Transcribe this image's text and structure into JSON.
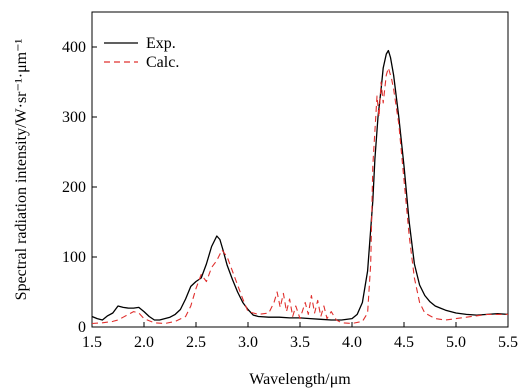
{
  "chart_data": {
    "type": "line",
    "title": "",
    "xlabel": "Wavelength/μm",
    "ylabel": "Spectral radiation intensity/W·sr⁻¹·μm⁻¹",
    "xlim": [
      1.5,
      5.5
    ],
    "ylim": [
      0,
      450
    ],
    "x_ticks": [
      1.5,
      2.0,
      2.5,
      3.0,
      3.5,
      4.0,
      4.5,
      5.0,
      5.5
    ],
    "x_tick_labels": [
      "1.5",
      "2.0",
      "2.5",
      "3.0",
      "3.5",
      "4.0",
      "4.5",
      "5.0",
      "5.5"
    ],
    "y_ticks": [
      0,
      100,
      200,
      300,
      400
    ],
    "y_tick_labels": [
      "0",
      "100",
      "200",
      "300",
      "400"
    ],
    "grid": false,
    "legend_position": "top-left",
    "series": [
      {
        "name": "Exp.",
        "color": "#000000",
        "style": "solid",
        "x": [
          1.5,
          1.55,
          1.6,
          1.65,
          1.7,
          1.75,
          1.8,
          1.85,
          1.9,
          1.95,
          2.0,
          2.05,
          2.1,
          2.15,
          2.2,
          2.25,
          2.3,
          2.35,
          2.4,
          2.45,
          2.5,
          2.55,
          2.6,
          2.65,
          2.7,
          2.73,
          2.76,
          2.8,
          2.85,
          2.9,
          2.95,
          3.0,
          3.05,
          3.1,
          3.2,
          3.3,
          3.4,
          3.5,
          3.6,
          3.7,
          3.8,
          3.9,
          4.0,
          4.05,
          4.1,
          4.15,
          4.2,
          4.22,
          4.25,
          4.28,
          4.3,
          4.33,
          4.35,
          4.37,
          4.4,
          4.45,
          4.5,
          4.55,
          4.6,
          4.65,
          4.7,
          4.75,
          4.8,
          4.85,
          4.9,
          5.0,
          5.1,
          5.2,
          5.3,
          5.4,
          5.5
        ],
        "y": [
          15,
          12,
          10,
          16,
          20,
          30,
          28,
          27,
          27,
          28,
          22,
          15,
          10,
          10,
          12,
          14,
          18,
          25,
          40,
          58,
          65,
          70,
          90,
          115,
          130,
          125,
          110,
          88,
          68,
          50,
          35,
          25,
          17,
          15,
          14,
          14,
          13,
          13,
          12,
          11,
          10,
          10,
          12,
          18,
          35,
          80,
          180,
          240,
          300,
          340,
          370,
          390,
          395,
          385,
          360,
          300,
          230,
          150,
          90,
          60,
          45,
          36,
          30,
          27,
          24,
          20,
          18,
          17,
          18,
          19,
          18
        ]
      },
      {
        "name": "Calc.",
        "color": "#e0302e",
        "style": "dashed",
        "x": [
          1.5,
          1.6,
          1.7,
          1.75,
          1.8,
          1.85,
          1.9,
          1.95,
          2.0,
          2.1,
          2.2,
          2.3,
          2.4,
          2.45,
          2.5,
          2.55,
          2.6,
          2.65,
          2.7,
          2.75,
          2.8,
          2.85,
          2.9,
          2.95,
          3.0,
          3.1,
          3.2,
          3.25,
          3.28,
          3.31,
          3.34,
          3.37,
          3.4,
          3.43,
          3.46,
          3.5,
          3.55,
          3.58,
          3.61,
          3.64,
          3.67,
          3.7,
          3.73,
          3.76,
          3.8,
          3.85,
          3.9,
          4.0,
          4.1,
          4.15,
          4.18,
          4.2,
          4.22,
          4.24,
          4.26,
          4.28,
          4.3,
          4.33,
          4.35,
          4.38,
          4.4,
          4.45,
          4.5,
          4.55,
          4.6,
          4.65,
          4.7,
          4.8,
          4.9,
          5.0,
          5.1,
          5.2,
          5.3,
          5.4,
          5.5
        ],
        "y": [
          5,
          6,
          8,
          10,
          14,
          18,
          22,
          20,
          12,
          6,
          5,
          8,
          15,
          30,
          55,
          75,
          65,
          85,
          95,
          110,
          100,
          80,
          60,
          40,
          22,
          18,
          20,
          35,
          50,
          28,
          48,
          22,
          40,
          15,
          30,
          12,
          35,
          18,
          45,
          20,
          38,
          15,
          30,
          12,
          22,
          10,
          6,
          5,
          8,
          20,
          90,
          230,
          280,
          330,
          300,
          350,
          320,
          360,
          370,
          355,
          340,
          290,
          210,
          130,
          70,
          35,
          20,
          12,
          10,
          12,
          14,
          16,
          18,
          18,
          18
        ]
      }
    ]
  }
}
